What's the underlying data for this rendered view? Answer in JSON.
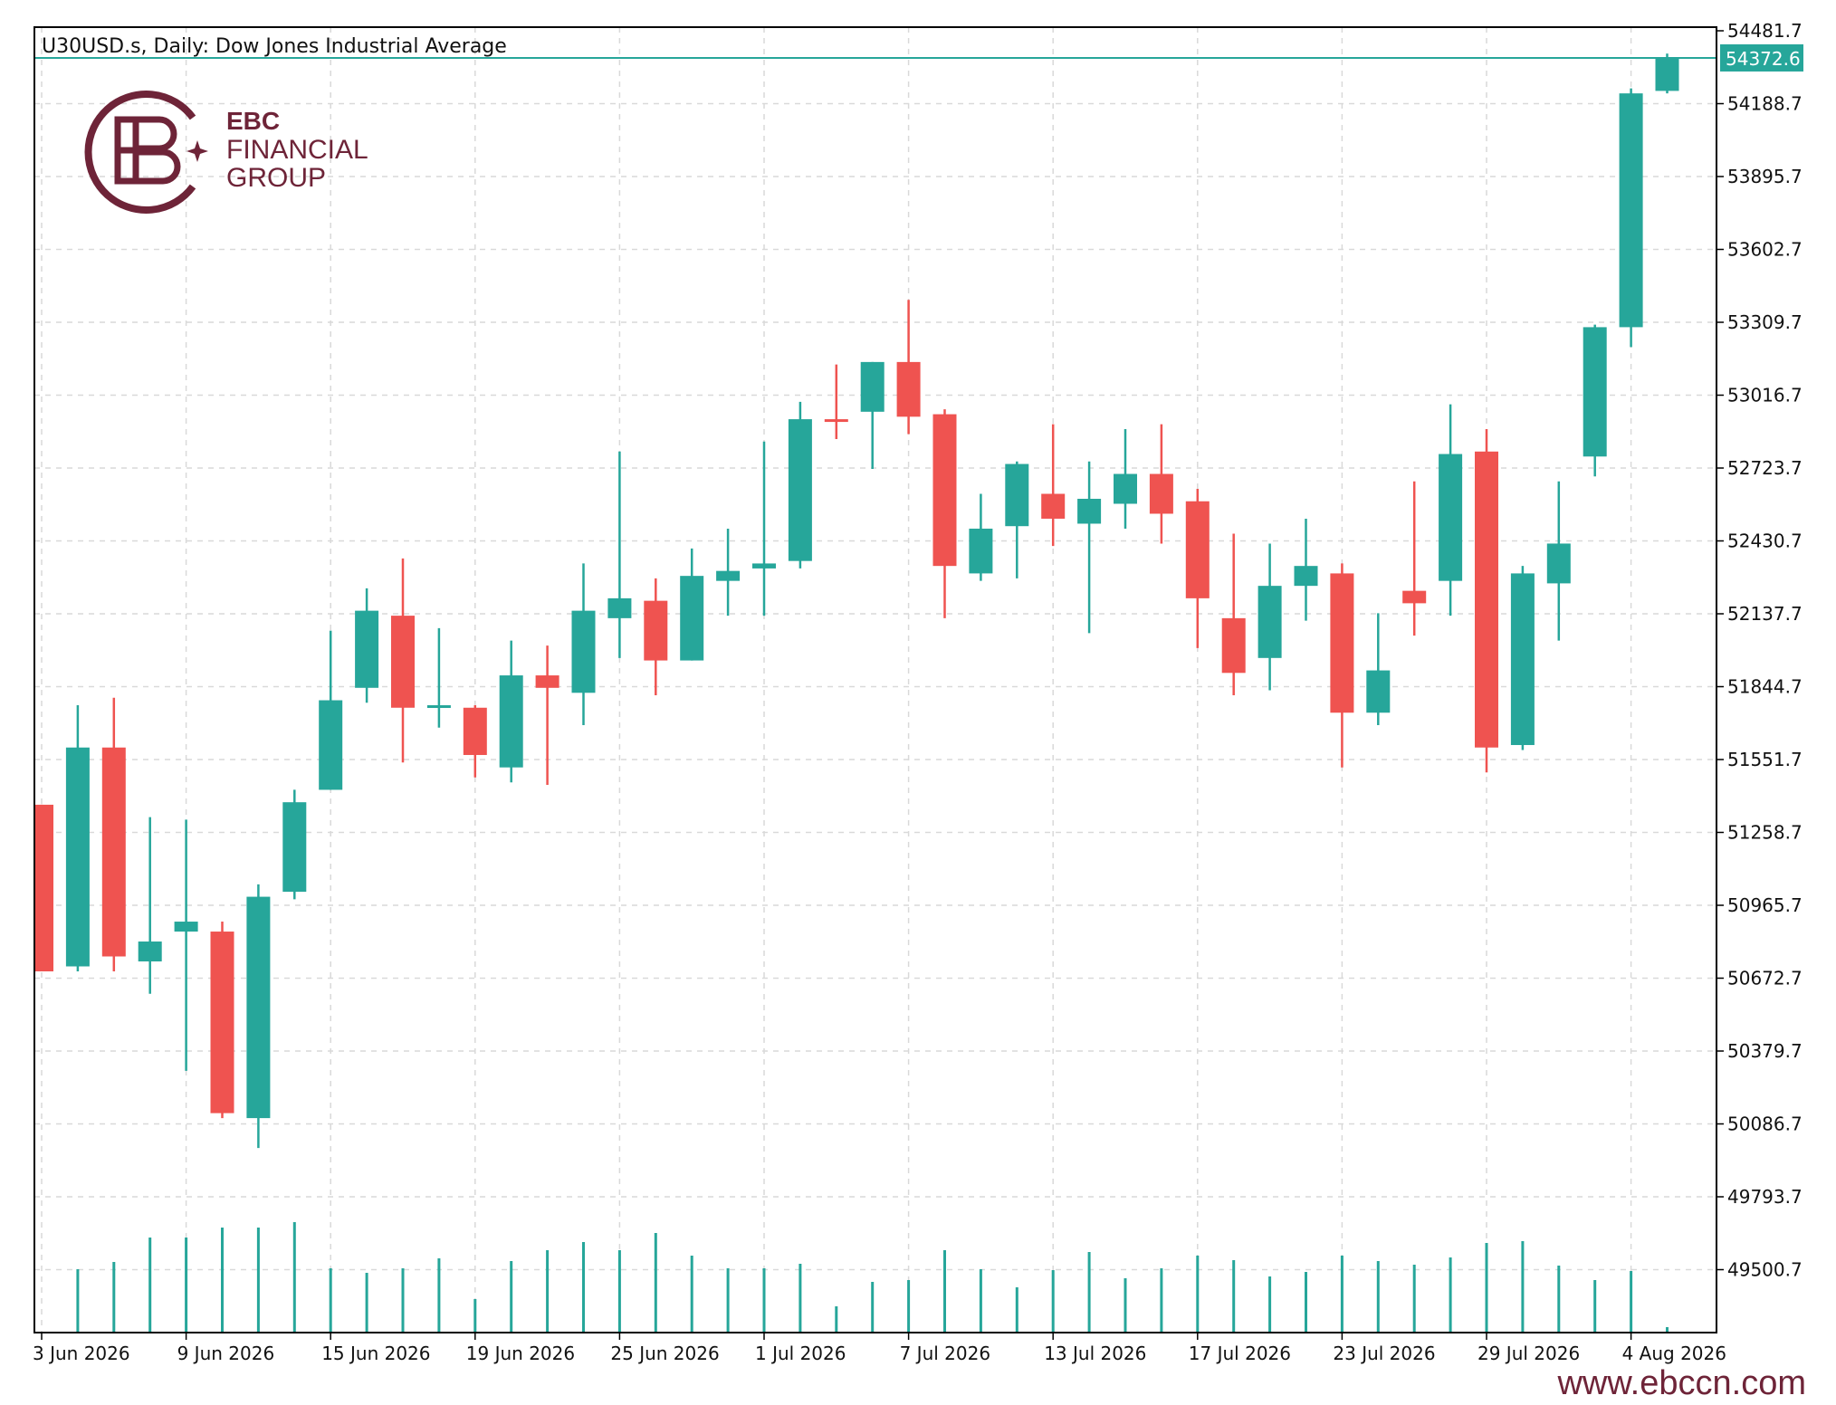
{
  "chart_data": {
    "type": "candlestick",
    "title": "U30USD.s, Daily:  Dow Jones Industrial Average",
    "current_price_label": "54372.6",
    "current_price": 54372.6,
    "y_ticks": [
      54481.7,
      54188.7,
      53895.7,
      53602.7,
      53309.7,
      53016.7,
      52723.7,
      52430.7,
      52137.7,
      51844.7,
      51551.7,
      51258.7,
      50965.7,
      50672.7,
      50379.7,
      50086.7,
      49793.7,
      49500.7
    ],
    "y_tick_labels": [
      "54481.7",
      "54188.7",
      "53895.7",
      "53602.7",
      "53309.7",
      "53016.7",
      "52723.7",
      "52430.7",
      "52137.7",
      "51844.7",
      "51551.7",
      "51258.7",
      "50965.7",
      "50672.7",
      "50379.7",
      "50086.7",
      "49793.7",
      "49500.7"
    ],
    "ylim": [
      49200,
      54481.7
    ],
    "x_tick_labels": [
      "3 Jun 2026",
      "9 Jun 2026",
      "15 Jun 2026",
      "19 Jun 2026",
      "25 Jun 2026",
      "1 Jul 2026",
      "7 Jul 2026",
      "13 Jul 2026",
      "17 Jul 2026",
      "23 Jul 2026",
      "29 Jul 2026",
      "4 Aug 2026"
    ],
    "x_tick_bar_index": [
      0,
      4,
      8,
      12,
      16,
      20,
      24,
      28,
      32,
      36,
      40,
      44
    ],
    "grid": true,
    "colors": {
      "up": "#26a69a",
      "down": "#ef5350",
      "grid": "#d9d9d9",
      "axis": "#000000",
      "price_line": "#26a69a"
    },
    "candles": [
      {
        "o": 51370,
        "h": 51370,
        "l": 50700,
        "c": 50700
      },
      {
        "o": 50720,
        "h": 51770,
        "l": 50700,
        "c": 51600
      },
      {
        "o": 51600,
        "h": 51800,
        "l": 50700,
        "c": 50760
      },
      {
        "o": 50740,
        "h": 51320,
        "l": 50610,
        "c": 50820
      },
      {
        "o": 50860,
        "h": 51310,
        "l": 50300,
        "c": 50900
      },
      {
        "o": 50860,
        "h": 50900,
        "l": 50110,
        "c": 50130
      },
      {
        "o": 50110,
        "h": 51050,
        "l": 49990,
        "c": 51000
      },
      {
        "o": 51020,
        "h": 51430,
        "l": 50990,
        "c": 51380
      },
      {
        "o": 51430,
        "h": 52070,
        "l": 51430,
        "c": 51790
      },
      {
        "o": 51840,
        "h": 52240,
        "l": 51780,
        "c": 52150
      },
      {
        "o": 52130,
        "h": 52360,
        "l": 51540,
        "c": 51760
      },
      {
        "o": 51770,
        "h": 52080,
        "l": 51680,
        "c": 51770
      },
      {
        "o": 51760,
        "h": 51770,
        "l": 51480,
        "c": 51570
      },
      {
        "o": 51520,
        "h": 52030,
        "l": 51460,
        "c": 51890
      },
      {
        "o": 51890,
        "h": 52010,
        "l": 51450,
        "c": 51840
      },
      {
        "o": 51820,
        "h": 52340,
        "l": 51690,
        "c": 52150
      },
      {
        "o": 52120,
        "h": 52790,
        "l": 51960,
        "c": 52200
      },
      {
        "o": 52190,
        "h": 52280,
        "l": 51810,
        "c": 51950
      },
      {
        "o": 51950,
        "h": 52400,
        "l": 51950,
        "c": 52290
      },
      {
        "o": 52270,
        "h": 52480,
        "l": 52130,
        "c": 52310
      },
      {
        "o": 52320,
        "h": 52830,
        "l": 52130,
        "c": 52340
      },
      {
        "o": 52350,
        "h": 52990,
        "l": 52320,
        "c": 52920
      },
      {
        "o": 52920,
        "h": 53140,
        "l": 52840,
        "c": 52910
      },
      {
        "o": 52950,
        "h": 53150,
        "l": 52720,
        "c": 53150
      },
      {
        "o": 53150,
        "h": 53400,
        "l": 52860,
        "c": 52930
      },
      {
        "o": 52940,
        "h": 52960,
        "l": 52120,
        "c": 52330
      },
      {
        "o": 52300,
        "h": 52620,
        "l": 52270,
        "c": 52480
      },
      {
        "o": 52490,
        "h": 52750,
        "l": 52280,
        "c": 52740
      },
      {
        "o": 52620,
        "h": 52900,
        "l": 52410,
        "c": 52520
      },
      {
        "o": 52500,
        "h": 52750,
        "l": 52060,
        "c": 52600
      },
      {
        "o": 52580,
        "h": 52880,
        "l": 52480,
        "c": 52700
      },
      {
        "o": 52700,
        "h": 52900,
        "l": 52420,
        "c": 52540
      },
      {
        "o": 52590,
        "h": 52640,
        "l": 52000,
        "c": 52200
      },
      {
        "o": 52120,
        "h": 52460,
        "l": 51810,
        "c": 51900
      },
      {
        "o": 51960,
        "h": 52420,
        "l": 51830,
        "c": 52250
      },
      {
        "o": 52250,
        "h": 52520,
        "l": 52110,
        "c": 52330
      },
      {
        "o": 52300,
        "h": 52340,
        "l": 51520,
        "c": 51740
      },
      {
        "o": 51740,
        "h": 52140,
        "l": 51690,
        "c": 51910
      },
      {
        "o": 52230,
        "h": 52670,
        "l": 52050,
        "c": 52180
      },
      {
        "o": 52270,
        "h": 52980,
        "l": 52130,
        "c": 52780
      },
      {
        "o": 52790,
        "h": 52880,
        "l": 51500,
        "c": 51600
      },
      {
        "o": 51610,
        "h": 52330,
        "l": 51590,
        "c": 52300
      },
      {
        "o": 52260,
        "h": 52670,
        "l": 52030,
        "c": 52420
      },
      {
        "o": 52770,
        "h": 53300,
        "l": 52690,
        "c": 53290
      },
      {
        "o": 53290,
        "h": 54250,
        "l": 53210,
        "c": 54230
      },
      {
        "o": 54240,
        "h": 54390,
        "l": 54230,
        "c": 54370
      }
    ],
    "volume": [
      0,
      70,
      78,
      105,
      105,
      116,
      116,
      122,
      71,
      66,
      71,
      82,
      37,
      79,
      91,
      100,
      91,
      110,
      85,
      71,
      71,
      76,
      29,
      56,
      58,
      91,
      70,
      50,
      69,
      89,
      60,
      71,
      85,
      80,
      62,
      67,
      85,
      79,
      75,
      83,
      99,
      101,
      74,
      58,
      68,
      6
    ]
  },
  "branding": {
    "brand_line1": "EBC",
    "brand_line2": "FINANCIAL",
    "brand_line3": "GROUP",
    "website": "www.ebccn.com",
    "brand_color": "#6e2438"
  }
}
